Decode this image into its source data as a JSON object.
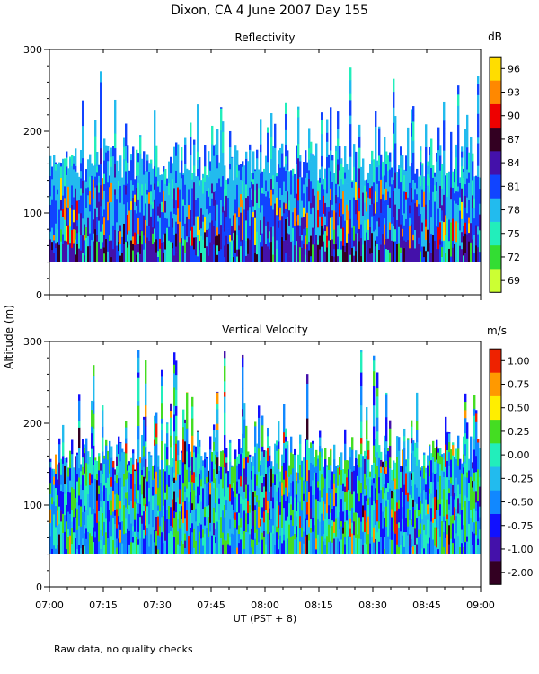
{
  "page": {
    "title": "Dixon, CA   4 June 2007   Day 155",
    "ylabel": "Altitude (m)",
    "xlabel": "UT  (PST + 8)",
    "note": "Raw data, no quality checks"
  },
  "chart_data": [
    {
      "type": "heatmap",
      "name": "reflectivity",
      "title": "Reflectivity",
      "xlabel": "UT  (PST + 8)",
      "ylabel": "Altitude (m)",
      "x_range": [
        "07:00",
        "09:00"
      ],
      "x_ticks": [
        "07:00",
        "07:15",
        "07:30",
        "07:45",
        "08:00",
        "08:15",
        "08:30",
        "08:45",
        "09:00"
      ],
      "ylim": [
        0,
        300
      ],
      "y_ticks": [
        0,
        100,
        200,
        300
      ],
      "data_altitude_range_m": [
        40,
        280
      ],
      "colorbar": {
        "unit": "dB",
        "labels": [
          "69",
          "72",
          "75",
          "78",
          "81",
          "84",
          "87",
          "90",
          "93",
          "96"
        ],
        "colors": [
          "#ccff33",
          "#33dd33",
          "#22eebb",
          "#22bbee",
          "#1144ff",
          "#4411aa",
          "#330022",
          "#ee0000",
          "#ff8800",
          "#ffdd00"
        ]
      }
    },
    {
      "type": "heatmap",
      "name": "vertical-velocity",
      "title": "Vertical Velocity",
      "xlabel": "UT  (PST + 8)",
      "ylabel": "Altitude (m)",
      "x_range": [
        "07:00",
        "09:00"
      ],
      "x_ticks": [
        "07:00",
        "07:15",
        "07:30",
        "07:45",
        "08:00",
        "08:15",
        "08:30",
        "08:45",
        "09:00"
      ],
      "ylim": [
        0,
        300
      ],
      "y_ticks": [
        0,
        100,
        200,
        300
      ],
      "data_altitude_range_m": [
        40,
        290
      ],
      "colorbar": {
        "unit": "m/s",
        "labels": [
          "-2.00",
          "-1.00",
          "-0.75",
          "-0.50",
          "-0.25",
          "0.00",
          "0.25",
          "0.50",
          "0.75",
          "1.00"
        ],
        "colors": [
          "#330022",
          "#4411aa",
          "#1111ff",
          "#1188ff",
          "#22bbee",
          "#22eebb",
          "#44dd22",
          "#ffee00",
          "#ff9900",
          "#ee2200"
        ]
      }
    }
  ]
}
